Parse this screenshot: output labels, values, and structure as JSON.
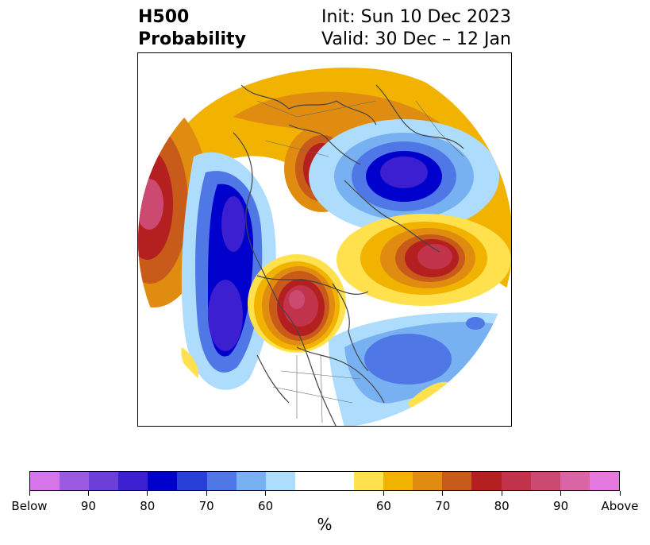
{
  "title": {
    "left_line1": "H500",
    "left_line2": "Probability",
    "right_line1": "Init: Sun 10 Dec 2023",
    "right_line2": "Valid: 30 Dec – 12 Jan"
  },
  "colorbar": {
    "colors": [
      "#d575e8",
      "#9b5ae0",
      "#6c3fd8",
      "#3b1fd0",
      "#0000cc",
      "#2640d8",
      "#4f78e6",
      "#78b1f2",
      "#aedcfc",
      "#ffffff",
      "#ffffff",
      "#ffe14d",
      "#f2b200",
      "#e08c10",
      "#c85a1a",
      "#b42020",
      "#c2344c",
      "#cc4a72",
      "#d964a6",
      "#e47ae0"
    ],
    "tick_labels": [
      "Below",
      "90",
      "80",
      "70",
      "60",
      "60",
      "70",
      "80",
      "90",
      "Above"
    ],
    "unit": "%"
  },
  "map": {
    "projection": "north polar stereographic",
    "features": [
      "coastlines",
      "country borders",
      "us-state borders"
    ]
  }
}
